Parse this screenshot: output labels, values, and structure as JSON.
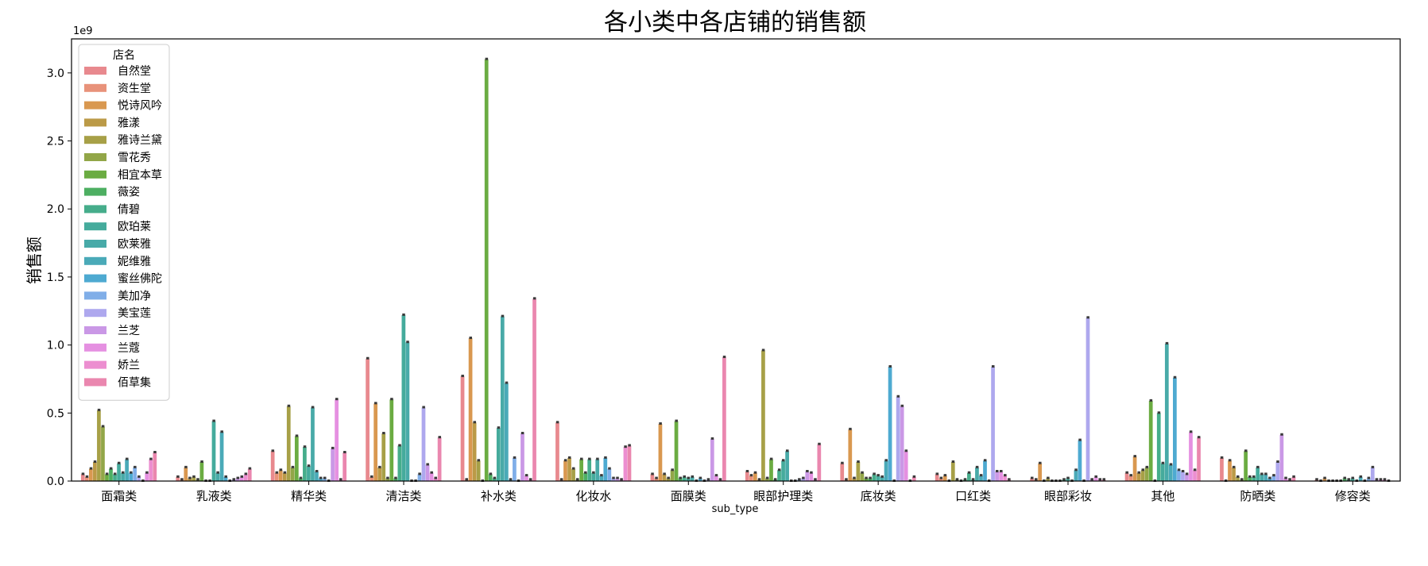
{
  "chart_data": {
    "type": "bar",
    "title": "各小类中各店铺的销售额",
    "xlabel": "sub_type",
    "ylabel": "销售额",
    "y_multiplier_label": "1e9",
    "ylim": [
      0,
      3.25
    ],
    "yticks": [
      0.0,
      0.5,
      1.0,
      1.5,
      2.0,
      2.5,
      3.0
    ],
    "ytick_labels": [
      "0.0",
      "0.5",
      "1.0",
      "1.5",
      "2.0",
      "2.5",
      "3.0"
    ],
    "grid": false,
    "legend": {
      "title": "店名",
      "placement": "top-left"
    },
    "categories": [
      "面霜类",
      "乳液类",
      "精华类",
      "清洁类",
      "补水类",
      "化妆水",
      "面膜类",
      "眼部护理类",
      "底妆类",
      "口红类",
      "眼部彩妆",
      "其他",
      "防晒类",
      "修容类"
    ],
    "series": [
      {
        "name": "自然堂",
        "color": "#e8898e",
        "values": [
          0.05,
          0.03,
          0.22,
          0.9,
          0.77,
          0.43,
          0.05,
          0.07,
          0.13,
          0.05,
          0.02,
          0.06,
          0.17,
          0.01
        ]
      },
      {
        "name": "资生堂",
        "color": "#e8927a",
        "values": [
          0.03,
          0.01,
          0.06,
          0.03,
          0.01,
          0.01,
          0.02,
          0.04,
          0.01,
          0.02,
          0.01,
          0.04,
          0.0,
          0.0
        ]
      },
      {
        "name": "悦诗风吟",
        "color": "#d99850",
        "values": [
          0.09,
          0.1,
          0.08,
          0.57,
          1.05,
          0.15,
          0.42,
          0.06,
          0.38,
          0.04,
          0.13,
          0.18,
          0.15,
          0.02
        ]
      },
      {
        "name": "雅漾",
        "color": "#bb9a47",
        "values": [
          0.14,
          0.02,
          0.06,
          0.1,
          0.43,
          0.17,
          0.05,
          0.01,
          0.02,
          0.0,
          0.0,
          0.06,
          0.1,
          0.0
        ]
      },
      {
        "name": "雅诗兰黛",
        "color": "#a7a047",
        "values": [
          0.52,
          0.03,
          0.55,
          0.35,
          0.15,
          0.09,
          0.02,
          0.96,
          0.14,
          0.14,
          0.02,
          0.08,
          0.03,
          0.0
        ]
      },
      {
        "name": "雪花秀",
        "color": "#92a648",
        "values": [
          0.4,
          0.01,
          0.1,
          0.02,
          0.0,
          0.01,
          0.08,
          0.02,
          0.06,
          0.01,
          0.0,
          0.1,
          0.01,
          0.0
        ]
      },
      {
        "name": "相宜本草",
        "color": "#6bac42",
        "values": [
          0.05,
          0.14,
          0.33,
          0.6,
          3.1,
          0.16,
          0.44,
          0.16,
          0.02,
          0.0,
          0.0,
          0.59,
          0.22,
          0.0
        ]
      },
      {
        "name": "薇姿",
        "color": "#4daf62",
        "values": [
          0.09,
          0.0,
          0.02,
          0.02,
          0.05,
          0.06,
          0.02,
          0.01,
          0.02,
          0.01,
          0.0,
          0.0,
          0.03,
          0.02
        ]
      },
      {
        "name": "倩碧",
        "color": "#46ad8b",
        "values": [
          0.05,
          0.0,
          0.25,
          0.26,
          0.02,
          0.16,
          0.03,
          0.08,
          0.05,
          0.06,
          0.01,
          0.5,
          0.03,
          0.01
        ]
      },
      {
        "name": "欧珀莱",
        "color": "#45ab9c",
        "values": [
          0.13,
          0.44,
          0.11,
          1.22,
          0.39,
          0.06,
          0.02,
          0.15,
          0.04,
          0.01,
          0.02,
          0.13,
          0.1,
          0.02
        ]
      },
      {
        "name": "欧莱雅",
        "color": "#48aaa8",
        "values": [
          0.06,
          0.06,
          0.54,
          1.02,
          1.21,
          0.16,
          0.03,
          0.22,
          0.03,
          0.1,
          0.0,
          1.01,
          0.05,
          0.0
        ]
      },
      {
        "name": "妮维雅",
        "color": "#4aaab8",
        "values": [
          0.16,
          0.36,
          0.07,
          0.0,
          0.72,
          0.04,
          0.0,
          0.0,
          0.15,
          0.04,
          0.08,
          0.12,
          0.05,
          0.03
        ]
      },
      {
        "name": "蜜丝佛陀",
        "color": "#4eaad1",
        "values": [
          0.06,
          0.03,
          0.02,
          0.0,
          0.01,
          0.17,
          0.02,
          0.0,
          0.84,
          0.15,
          0.3,
          0.76,
          0.02,
          0.0
        ]
      },
      {
        "name": "美加净",
        "color": "#80aee8",
        "values": [
          0.1,
          0.0,
          0.02,
          0.05,
          0.17,
          0.09,
          0.0,
          0.01,
          0.0,
          0.0,
          0.0,
          0.08,
          0.04,
          0.02
        ]
      },
      {
        "name": "美宝莲",
        "color": "#aea8ee",
        "values": [
          0.03,
          0.01,
          0.0,
          0.54,
          0.0,
          0.02,
          0.01,
          0.02,
          0.62,
          0.84,
          1.2,
          0.07,
          0.14,
          0.1
        ]
      },
      {
        "name": "兰芝",
        "color": "#ca98e6",
        "values": [
          0.0,
          0.02,
          0.24,
          0.12,
          0.35,
          0.02,
          0.31,
          0.07,
          0.55,
          0.07,
          0.01,
          0.05,
          0.34,
          0.01
        ]
      },
      {
        "name": "兰蔻",
        "color": "#e590e1",
        "values": [
          0.06,
          0.03,
          0.6,
          0.06,
          0.04,
          0.01,
          0.04,
          0.06,
          0.22,
          0.07,
          0.03,
          0.36,
          0.02,
          0.01
        ]
      },
      {
        "name": "娇兰",
        "color": "#ec8ed0",
        "values": [
          0.16,
          0.05,
          0.01,
          0.02,
          0.01,
          0.25,
          0.01,
          0.01,
          0.0,
          0.04,
          0.01,
          0.08,
          0.01,
          0.01
        ]
      },
      {
        "name": "佰草集",
        "color": "#ea87af",
        "values": [
          0.21,
          0.09,
          0.21,
          0.32,
          1.34,
          0.26,
          0.91,
          0.27,
          0.03,
          0.01,
          0.01,
          0.32,
          0.03,
          0.0
        ]
      }
    ]
  }
}
